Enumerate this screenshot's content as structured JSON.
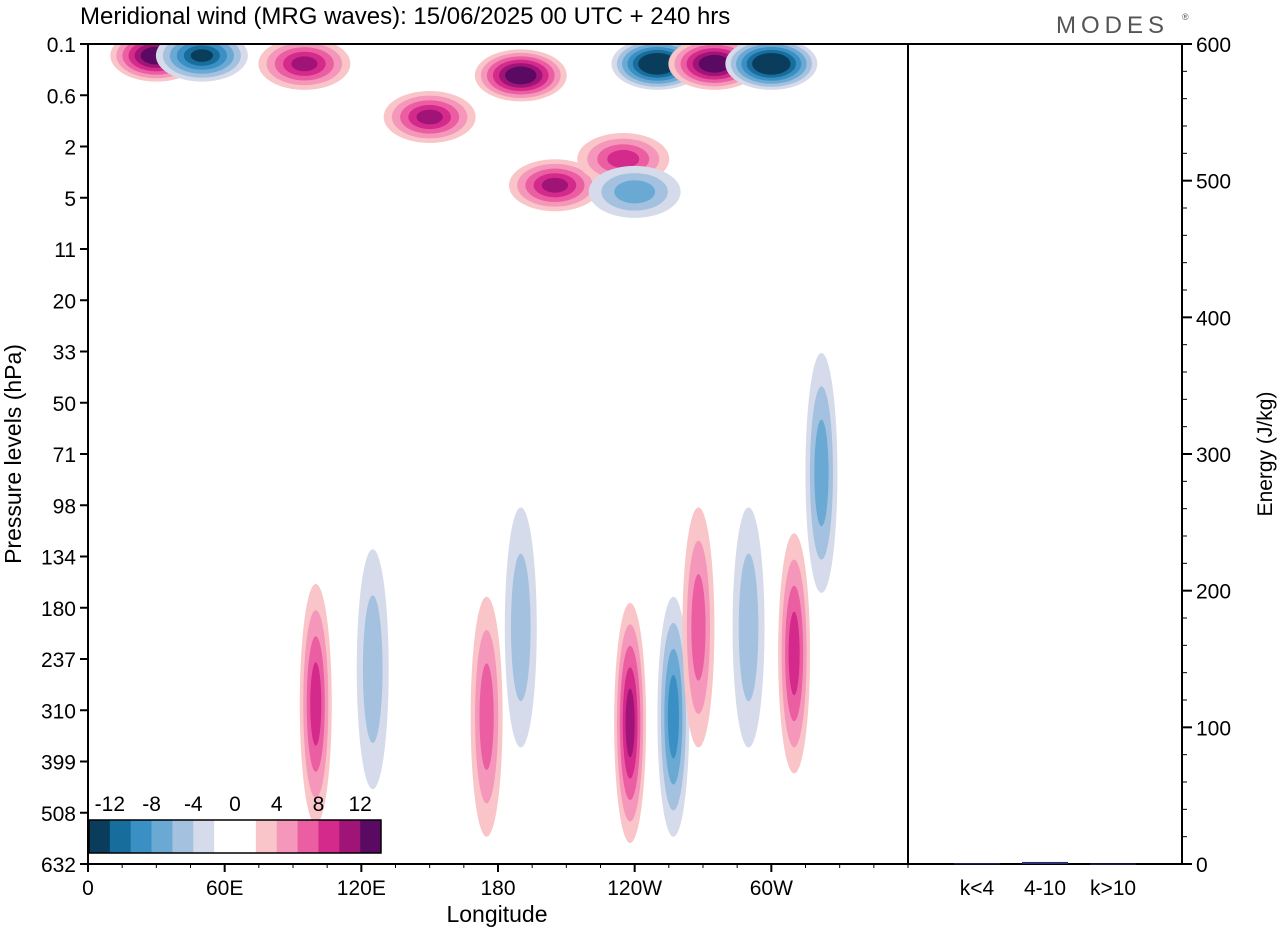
{
  "chart_data": [
    {
      "type": "heatmap",
      "title": "Meridional wind (MRG waves):  15/06/2025  00 UTC  + 240 hrs",
      "xlabel": "Longitude",
      "ylabel": "Pressure levels (hPa)",
      "x_ticks": [
        "0",
        "60E",
        "120E",
        "180",
        "120W",
        "60W"
      ],
      "y_ticks": [
        "0.1",
        "0.6",
        "2",
        "5",
        "11",
        "20",
        "33",
        "50",
        "71",
        "98",
        "134",
        "180",
        "237",
        "310",
        "399",
        "508",
        "632"
      ],
      "colorbar": {
        "labels": [
          "-12",
          "-8",
          "-4",
          "0",
          "4",
          "8",
          "12"
        ],
        "colors": [
          "#0a3d5c",
          "#176e9c",
          "#3a8fc4",
          "#6aa9d3",
          "#a4c2e0",
          "#d6dbeb",
          "#ffffff",
          "#ffffff",
          "#f9c5c8",
          "#f597bb",
          "#eb5fa2",
          "#d42a8c",
          "#a11477",
          "#5a0a63"
        ]
      },
      "features": [
        {
          "lon": 30,
          "p": 0.15,
          "value": 14
        },
        {
          "lon": 50,
          "p": 0.15,
          "value": -13
        },
        {
          "lon": 95,
          "p": 0.2,
          "value": 11
        },
        {
          "lon": 150,
          "p": 1.0,
          "value": 10
        },
        {
          "lon": 190,
          "p": 0.3,
          "value": 14
        },
        {
          "lon": 250,
          "p": 0.2,
          "value": -16
        },
        {
          "lon": 275,
          "p": 0.2,
          "value": 14
        },
        {
          "lon": 300,
          "p": 0.2,
          "value": -16
        },
        {
          "lon": 205,
          "p": 4.0,
          "value": 10
        },
        {
          "lon": 235,
          "p": 2.5,
          "value": 9
        },
        {
          "lon": 240,
          "p": 4.5,
          "value": -6
        },
        {
          "lon": 100,
          "p": 300,
          "value": 8
        },
        {
          "lon": 125,
          "p": 250,
          "value": -4
        },
        {
          "lon": 175,
          "p": 320,
          "value": 6
        },
        {
          "lon": 190,
          "p": 200,
          "value": -5
        },
        {
          "lon": 238,
          "p": 330,
          "value": 11
        },
        {
          "lon": 257,
          "p": 320,
          "value": -8
        },
        {
          "lon": 268,
          "p": 200,
          "value": 6
        },
        {
          "lon": 290,
          "p": 200,
          "value": -5
        },
        {
          "lon": 310,
          "p": 230,
          "value": 8
        },
        {
          "lon": 322,
          "p": 80,
          "value": -6
        }
      ]
    },
    {
      "type": "bar",
      "ylabel": "Energy (J/kg)",
      "categories": [
        "k<4",
        "4-10",
        "k>10"
      ],
      "values": [
        0.5,
        1.5,
        0.3
      ],
      "ylim": [
        0,
        600
      ],
      "y_ticks": [
        "0",
        "100",
        "200",
        "300",
        "400",
        "500",
        "600"
      ],
      "bar_color": "#2b2f6e"
    }
  ],
  "logo_text": "MODES",
  "logo_mark": "®"
}
